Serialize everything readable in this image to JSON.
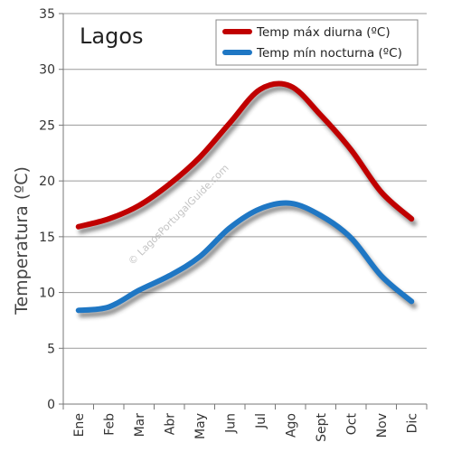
{
  "chart_data": {
    "type": "line",
    "title": "Lagos",
    "ylabel": "Temperatura (ºC)",
    "xlabel": "",
    "categories": [
      "Ene",
      "Feb",
      "Mar",
      "Abr",
      "May",
      "Jun",
      "Jul",
      "Ago",
      "Sept",
      "Oct",
      "Nov",
      "Dic"
    ],
    "ylim": [
      0,
      35
    ],
    "yticks": [
      0,
      5,
      10,
      15,
      20,
      25,
      30,
      35
    ],
    "grid": true,
    "legend_position": "top-right",
    "series": [
      {
        "name": "Temp máx diurna (ºC)",
        "color": "#c00000",
        "values": [
          15.9,
          16.6,
          17.8,
          19.7,
          22.1,
          25.2,
          28.2,
          28.5,
          25.9,
          22.8,
          19.0,
          16.6
        ]
      },
      {
        "name": "Temp mín nocturna (ºC)",
        "color": "#1f77c4",
        "values": [
          8.4,
          8.7,
          10.2,
          11.5,
          13.2,
          15.8,
          17.5,
          18.0,
          16.9,
          14.9,
          11.5,
          9.2
        ]
      }
    ],
    "watermark": "© LagosPortugalGuide.com"
  }
}
